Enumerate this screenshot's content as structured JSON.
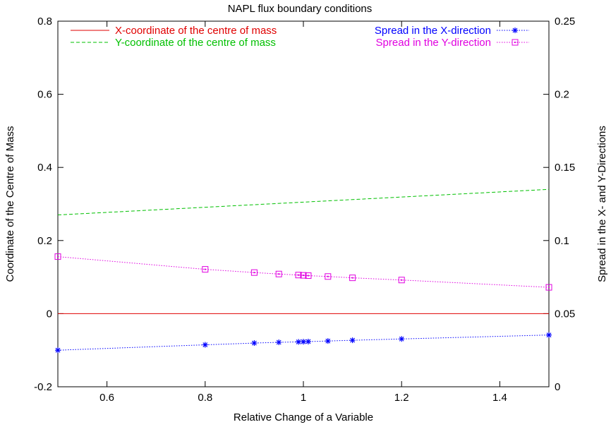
{
  "chart_data": {
    "type": "line",
    "title": "NAPL flux boundary conditions",
    "xlabel": "Relative Change of a Variable",
    "ylabel": "Coordinate of the Centre of Mass",
    "y2label": "Spread in the X- and Y-Directions",
    "xlim": [
      0.5,
      1.5
    ],
    "ylim": [
      -0.2,
      0.8
    ],
    "y2lim": [
      0,
      0.25
    ],
    "xticks": [
      0.6,
      0.8,
      1.0,
      1.2,
      1.4
    ],
    "xtick_labels": [
      "0.6",
      "0.8",
      "1",
      "1.2",
      "1.4"
    ],
    "yticks": [
      -0.2,
      0,
      0.2,
      0.4,
      0.6,
      0.8
    ],
    "ytick_labels": [
      "-0.2",
      "0",
      "0.2",
      "0.4",
      "0.6",
      "0.8"
    ],
    "y2ticks": [
      0,
      0.05,
      0.1,
      0.15,
      0.2,
      0.25
    ],
    "y2tick_labels": [
      "0",
      "0.05",
      "0.1",
      "0.15",
      "0.2",
      "0.25"
    ],
    "grid": false,
    "legend_left": "top-left",
    "legend_right": "top-right",
    "series": [
      {
        "name": "X-coordinate of the centre of mass",
        "axis": "left",
        "color": "#e00000",
        "dash": "solid",
        "marker": "none",
        "x": [
          0.5,
          1.5
        ],
        "y": [
          0.0,
          0.0
        ]
      },
      {
        "name": "Y-coordinate of the centre of mass",
        "axis": "left",
        "color": "#00c000",
        "dash": "dashed",
        "marker": "none",
        "x": [
          0.5,
          1.5
        ],
        "y": [
          0.27,
          0.34
        ]
      },
      {
        "name": "Spread in the X-direction",
        "axis": "right",
        "color": "#0000ff",
        "dash": "dotted",
        "marker": "star",
        "x": [
          0.5,
          0.8,
          0.9,
          0.95,
          0.99,
          1.0,
          1.01,
          1.05,
          1.1,
          1.2,
          1.5
        ],
        "y": [
          0.025,
          0.0287,
          0.0299,
          0.0304,
          0.0307,
          0.0308,
          0.0309,
          0.0313,
          0.0318,
          0.0327,
          0.0354
        ]
      },
      {
        "name": "Spread in the Y-direction",
        "axis": "right",
        "color": "#e000e0",
        "dash": "dotted",
        "marker": "square",
        "x": [
          0.5,
          0.8,
          0.9,
          0.95,
          0.99,
          1.0,
          1.01,
          1.05,
          1.1,
          1.2,
          1.5
        ],
        "y": [
          0.089,
          0.0803,
          0.0781,
          0.0771,
          0.0764,
          0.0762,
          0.076,
          0.0754,
          0.0745,
          0.073,
          0.068
        ]
      }
    ]
  }
}
